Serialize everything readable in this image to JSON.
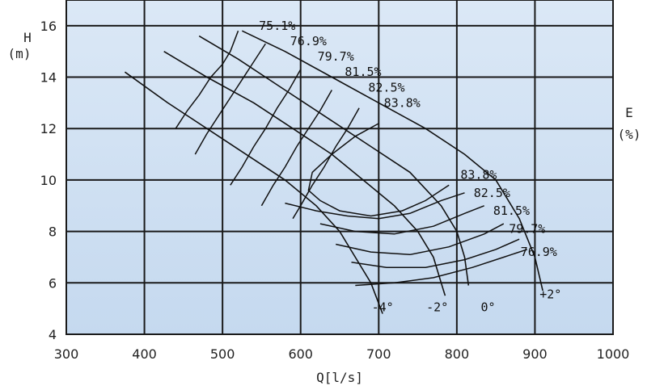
{
  "chart_data": {
    "type": "line",
    "xlabel": "Q[l/s]",
    "ylabel": "H",
    "ylabel_unit": "(m)",
    "y2label": "E",
    "y2label_unit": "(%)",
    "xlim": [
      300,
      1000
    ],
    "ylim": [
      4,
      17
    ],
    "x_ticks": [
      300,
      400,
      500,
      600,
      700,
      800,
      900,
      1000
    ],
    "y_ticks": [
      4,
      6,
      8,
      10,
      12,
      14,
      16
    ],
    "grid": true,
    "series": [
      {
        "name": "-4°",
        "kind": "blade-angle",
        "points": [
          [
            375,
            14.2
          ],
          [
            430,
            13.0
          ],
          [
            480,
            12.0
          ],
          [
            530,
            11.0
          ],
          [
            580,
            10.0
          ],
          [
            620,
            9.0
          ],
          [
            650,
            8.0
          ],
          [
            670,
            7.0
          ],
          [
            690,
            6.0
          ],
          [
            705,
            4.8
          ]
        ]
      },
      {
        "name": "-2°",
        "kind": "blade-angle",
        "points": [
          [
            425,
            15.0
          ],
          [
            480,
            14.0
          ],
          [
            540,
            13.0
          ],
          [
            590,
            12.0
          ],
          [
            640,
            11.0
          ],
          [
            680,
            10.0
          ],
          [
            720,
            9.0
          ],
          [
            750,
            8.0
          ],
          [
            770,
            7.0
          ],
          [
            780,
            6.0
          ],
          [
            785,
            5.5
          ]
        ]
      },
      {
        "name": "0°",
        "kind": "blade-angle",
        "points": [
          [
            470,
            15.6
          ],
          [
            520,
            14.7
          ],
          [
            580,
            13.5
          ],
          [
            630,
            12.5
          ],
          [
            690,
            11.3
          ],
          [
            740,
            10.3
          ],
          [
            780,
            9.0
          ],
          [
            800,
            8.0
          ],
          [
            810,
            7.0
          ],
          [
            815,
            5.9
          ]
        ]
      },
      {
        "name": "+2°",
        "kind": "blade-angle",
        "points": [
          [
            525,
            15.8
          ],
          [
            580,
            15.0
          ],
          [
            640,
            14.0
          ],
          [
            700,
            13.0
          ],
          [
            760,
            12.0
          ],
          [
            810,
            11.0
          ],
          [
            850,
            10.0
          ],
          [
            880,
            8.5
          ],
          [
            900,
            7.0
          ],
          [
            910,
            5.7
          ]
        ]
      }
    ],
    "efficiency_contours": [
      {
        "label": "75.1%",
        "points": [
          [
            520,
            15.8
          ],
          [
            510,
            15.0
          ],
          [
            500,
            14.5
          ],
          [
            485,
            14.0
          ],
          [
            470,
            13.3
          ],
          [
            455,
            12.7
          ],
          [
            440,
            12.0
          ]
        ]
      },
      {
        "label": "76.9%",
        "points": [
          [
            555,
            15.3
          ],
          [
            540,
            14.6
          ],
          [
            525,
            13.9
          ],
          [
            510,
            13.2
          ],
          [
            495,
            12.5
          ],
          [
            480,
            11.8
          ],
          [
            465,
            11.0
          ]
        ]
      },
      {
        "label": "79.7%",
        "points": [
          [
            600,
            14.3
          ],
          [
            585,
            13.5
          ],
          [
            570,
            12.8
          ],
          [
            555,
            12.0
          ],
          [
            540,
            11.3
          ],
          [
            525,
            10.5
          ],
          [
            510,
            9.8
          ]
        ]
      },
      {
        "label": "81.5%",
        "points": [
          [
            640,
            13.5
          ],
          [
            625,
            12.7
          ],
          [
            610,
            12.0
          ],
          [
            595,
            11.3
          ],
          [
            580,
            10.5
          ],
          [
            565,
            9.8
          ],
          [
            550,
            9.0
          ]
        ]
      },
      {
        "label": "82.5%",
        "points": [
          [
            675,
            12.8
          ],
          [
            660,
            12.0
          ],
          [
            645,
            11.3
          ],
          [
            630,
            10.5
          ],
          [
            615,
            9.8
          ],
          [
            600,
            9.0
          ],
          [
            590,
            8.5
          ]
        ]
      },
      {
        "label": "83.8%",
        "points": [
          [
            700,
            12.2
          ],
          [
            670,
            11.7
          ],
          [
            640,
            11.0
          ],
          [
            615,
            10.3
          ],
          [
            610,
            9.6
          ],
          [
            625,
            9.2
          ],
          [
            650,
            8.8
          ],
          [
            690,
            8.6
          ],
          [
            730,
            8.8
          ],
          [
            760,
            9.2
          ],
          [
            790,
            9.8
          ]
        ]
      },
      {
        "label": "82.5%",
        "points": [
          [
            580,
            9.1
          ],
          [
            620,
            8.8
          ],
          [
            660,
            8.6
          ],
          [
            700,
            8.5
          ],
          [
            740,
            8.7
          ],
          [
            780,
            9.2
          ],
          [
            810,
            9.5
          ]
        ]
      },
      {
        "label": "81.5%",
        "points": [
          [
            625,
            8.3
          ],
          [
            670,
            8.0
          ],
          [
            720,
            7.9
          ],
          [
            770,
            8.2
          ],
          [
            810,
            8.7
          ],
          [
            835,
            9.0
          ]
        ]
      },
      {
        "label": "79.7%",
        "points": [
          [
            645,
            7.5
          ],
          [
            690,
            7.2
          ],
          [
            740,
            7.1
          ],
          [
            790,
            7.4
          ],
          [
            835,
            7.9
          ],
          [
            860,
            8.3
          ]
        ]
      },
      {
        "label": "76.9%",
        "points": [
          [
            665,
            6.8
          ],
          [
            710,
            6.6
          ],
          [
            760,
            6.6
          ],
          [
            810,
            6.9
          ],
          [
            850,
            7.3
          ],
          [
            880,
            7.7
          ]
        ]
      },
      {
        "label": "",
        "points": [
          [
            670,
            5.9
          ],
          [
            720,
            6.0
          ],
          [
            770,
            6.2
          ],
          [
            820,
            6.6
          ],
          [
            860,
            7.0
          ],
          [
            890,
            7.3
          ]
        ]
      }
    ],
    "contour_labels": [
      {
        "text": "75.1%",
        "x": 570,
        "y": 16.0
      },
      {
        "text": "76.9%",
        "x": 610,
        "y": 15.4
      },
      {
        "text": "79.7%",
        "x": 645,
        "y": 14.8
      },
      {
        "text": "81.5%",
        "x": 680,
        "y": 14.2
      },
      {
        "text": "82.5%",
        "x": 710,
        "y": 13.6
      },
      {
        "text": "83.8%",
        "x": 730,
        "y": 13.0
      },
      {
        "text": "83.8%",
        "x": 828,
        "y": 10.2
      },
      {
        "text": "82.5%",
        "x": 845,
        "y": 9.5
      },
      {
        "text": "81.5%",
        "x": 870,
        "y": 8.8
      },
      {
        "text": "79.7%",
        "x": 890,
        "y": 8.1
      },
      {
        "text": "76.9%",
        "x": 905,
        "y": 7.2
      }
    ],
    "angle_labels": [
      {
        "text": "-4°",
        "x": 705,
        "y": 4.9
      },
      {
        "text": "-2°",
        "x": 775,
        "y": 4.9
      },
      {
        "text": "0°",
        "x": 840,
        "y": 4.9
      },
      {
        "text": "+2°",
        "x": 920,
        "y": 5.4
      }
    ],
    "colors": {
      "background_top": "#dbe8f6",
      "background_bottom": "#c5d9ef",
      "grid": "#1a1a1a",
      "curves": "#111111"
    }
  }
}
